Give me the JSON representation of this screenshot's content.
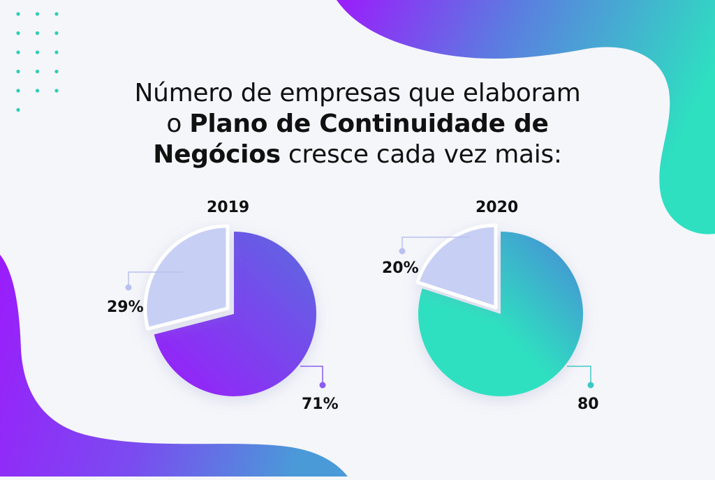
{
  "title": {
    "line1": "Número de empresas que elaboram",
    "line2_pre": "o ",
    "line2_bold": "Plano de Continuidade de",
    "line3_bold": "Negócios",
    "line3_post": " cresce cada vez mais:"
  },
  "colors": {
    "background": "#f5f6fa",
    "purple": "#9b1cfb",
    "purple_mid": "#6a5ae0",
    "teal": "#2ee0c0",
    "lavender": "#c7cff5",
    "leader_purple": "#8a5cf0",
    "leader_teal": "#3fc8c8",
    "leader_light": "#b9c0f0"
  },
  "chart_data": [
    {
      "type": "pie",
      "title": "2019",
      "labels": [
        "29%",
        "71%"
      ],
      "values": [
        29,
        71
      ]
    },
    {
      "type": "pie",
      "title": "2020",
      "labels": [
        "20%",
        "80"
      ],
      "values": [
        20,
        80
      ]
    }
  ]
}
